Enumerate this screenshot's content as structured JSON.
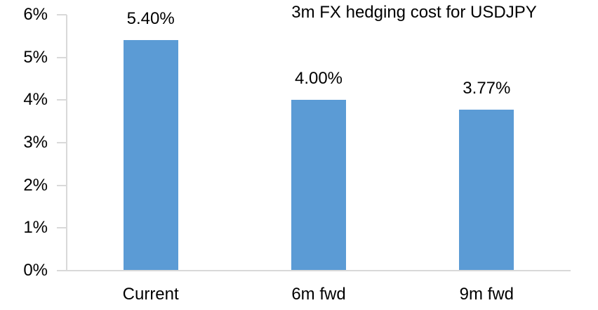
{
  "chart_data": {
    "type": "bar",
    "title": "3m FX hedging cost for USDJPY",
    "categories": [
      "Current",
      "6m fwd",
      "9m fwd"
    ],
    "values": [
      5.4,
      4.0,
      3.77
    ],
    "data_labels": [
      "5.40%",
      "4.00%",
      "3.77%"
    ],
    "y_ticks": [
      "0%",
      "1%",
      "2%",
      "3%",
      "4%",
      "5%",
      "6%"
    ],
    "ylim": [
      0,
      6
    ],
    "xlabel": "",
    "ylabel": "",
    "grid": "off",
    "legend": "none",
    "colors": {
      "bar": "#5B9BD5",
      "axis": "#D9D9D9",
      "text": "#000000",
      "background": "#FFFFFF"
    }
  }
}
